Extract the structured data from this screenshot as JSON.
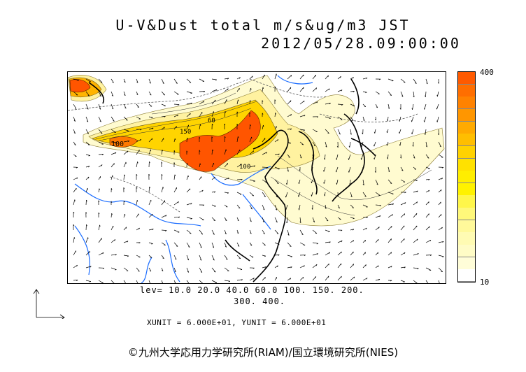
{
  "title": {
    "line1": "U-V&Dust total m/s&ug/m3 JST",
    "line2": "2012/05/28.09:00:00"
  },
  "colorbar": {
    "max_label": "400",
    "min_label": "10",
    "colors": [
      "#ff5a00",
      "#ff6e00",
      "#ff8200",
      "#ff9600",
      "#ffaa00",
      "#ffbe00",
      "#ffd200",
      "#ffe100",
      "#ffee00",
      "#fff200",
      "#fff64a",
      "#fff87a",
      "#fff99a",
      "#fffbb3",
      "#fffcc6",
      "#fffdd8",
      "#ffffff"
    ]
  },
  "levels": {
    "line1": "lev= 10.0 20.0 40.0 60.0 100. 150. 200.",
    "line2": "300. 400."
  },
  "units": "XUNIT = 6.000E+01, YUNIT = 6.000E+01",
  "credit": "©九州大学応用力学研究所(RIAM)/国立環境研究所(NIES)",
  "contour_labels": [
    "100",
    "150",
    "60",
    "100"
  ],
  "colors": {
    "high": "#ff5500",
    "mid": "#ffd400",
    "low": "#fff2a0",
    "faint": "#fffbd0",
    "coast": "#000000",
    "river": "#1a6cff",
    "border": "#555555"
  }
}
